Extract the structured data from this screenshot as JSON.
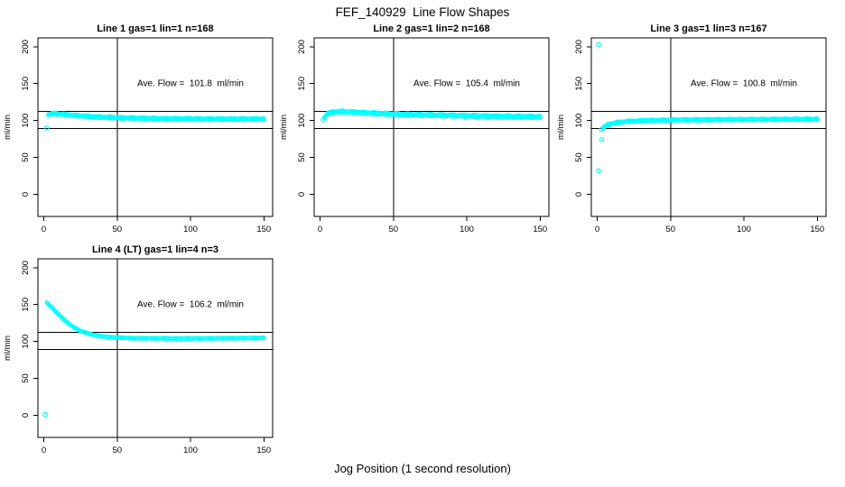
{
  "figure": {
    "title": "FEF_140929  Line Flow Shapes",
    "xlabel": "Jog Position (1 second resolution)",
    "marker_color": "#00FFFF",
    "axis_color": "#000000",
    "background": "#FFFFFF"
  },
  "chart_data": [
    {
      "type": "scatter",
      "title": "Line 1 gas=1 lin=1 n=168",
      "n": 168,
      "annotation": "Ave. Flow =  101.8  ml/min",
      "ave_flow_ml_min": 101.8,
      "ylabel": "ml/min",
      "x_ticks": [
        0,
        50,
        100,
        150
      ],
      "y_ticks": [
        0,
        50,
        100,
        150,
        200
      ],
      "xlim": [
        -4,
        156
      ],
      "ylim": [
        -30,
        212
      ],
      "ref_hlines": [
        112.5,
        89
      ],
      "ref_vline": 50,
      "annotation_pos": [
        100,
        150
      ],
      "band": {
        "x_start": 3,
        "x_end": 150,
        "x_step": 1,
        "spread": 4,
        "keypoints": [
          [
            3,
            108
          ],
          [
            6,
            109.5
          ],
          [
            10,
            109
          ],
          [
            20,
            107
          ],
          [
            35,
            105
          ],
          [
            55,
            103.5
          ],
          [
            80,
            102.5
          ],
          [
            110,
            102
          ],
          [
            150,
            102
          ]
        ]
      },
      "outliers": [
        [
          2,
          90
        ]
      ]
    },
    {
      "type": "scatter",
      "title": "Line 2 gas=1 lin=2 n=168",
      "n": 168,
      "annotation": "Ave. Flow =  105.4  ml/min",
      "ave_flow_ml_min": 105.4,
      "ylabel": "ml/min",
      "x_ticks": [
        0,
        50,
        100,
        150
      ],
      "y_ticks": [
        0,
        50,
        100,
        150,
        200
      ],
      "xlim": [
        -4,
        156
      ],
      "ylim": [
        -30,
        212
      ],
      "ref_hlines": [
        112.5,
        89
      ],
      "ref_vline": 50,
      "annotation_pos": [
        100,
        150
      ],
      "band": {
        "x_start": 3,
        "x_end": 150,
        "x_step": 1,
        "spread": 5,
        "keypoints": [
          [
            3,
            104
          ],
          [
            5,
            109
          ],
          [
            9,
            111.5
          ],
          [
            15,
            112
          ],
          [
            25,
            111
          ],
          [
            40,
            109.5
          ],
          [
            60,
            108
          ],
          [
            85,
            107
          ],
          [
            110,
            106
          ],
          [
            135,
            105.3
          ],
          [
            150,
            105
          ]
        ]
      },
      "outliers": [
        [
          2,
          101
        ]
      ]
    },
    {
      "type": "scatter",
      "title": "Line 3 gas=1 lin=3 n=167",
      "n": 167,
      "annotation": "Ave. Flow =  100.8  ml/min",
      "ave_flow_ml_min": 100.8,
      "ylabel": "ml/min",
      "x_ticks": [
        0,
        50,
        100,
        150
      ],
      "y_ticks": [
        0,
        50,
        100,
        150,
        200
      ],
      "xlim": [
        -4,
        156
      ],
      "ylim": [
        -30,
        212
      ],
      "ref_hlines": [
        112.5,
        89
      ],
      "ref_vline": 50,
      "annotation_pos": [
        100,
        150
      ],
      "band": {
        "x_start": 4,
        "x_end": 150,
        "x_step": 1,
        "spread": 3.5,
        "keypoints": [
          [
            4,
            90
          ],
          [
            6,
            93
          ],
          [
            9,
            95.5
          ],
          [
            14,
            97.5
          ],
          [
            22,
            99
          ],
          [
            35,
            100
          ],
          [
            55,
            100.8
          ],
          [
            80,
            101.2
          ],
          [
            110,
            101.5
          ],
          [
            150,
            101.8
          ]
        ]
      },
      "outliers": [
        [
          1,
          203
        ],
        [
          3,
          88
        ],
        [
          3,
          74
        ],
        [
          1,
          32
        ]
      ]
    },
    {
      "type": "scatter",
      "title": "Line 4 (LT) gas=1 lin=4 n=3",
      "n": 3,
      "annotation": "Ave. Flow =  106.2  ml/min",
      "ave_flow_ml_min": 106.2,
      "ylabel": "ml/min",
      "x_ticks": [
        0,
        50,
        100,
        150
      ],
      "y_ticks": [
        0,
        50,
        100,
        150,
        200
      ],
      "xlim": [
        -4,
        156
      ],
      "ylim": [
        -30,
        212
      ],
      "ref_hlines": [
        112.5,
        89
      ],
      "ref_vline": 50,
      "annotation_pos": [
        100,
        150
      ],
      "band": {
        "x_start": 2,
        "x_end": 150,
        "x_step": 1,
        "spread": 2,
        "keypoints": [
          [
            2,
            153
          ],
          [
            5,
            147
          ],
          [
            9,
            139
          ],
          [
            13,
            131
          ],
          [
            17,
            124
          ],
          [
            21,
            118.5
          ],
          [
            26,
            113.5
          ],
          [
            31,
            110.5
          ],
          [
            36,
            108
          ],
          [
            45,
            105.8
          ],
          [
            60,
            104.5
          ],
          [
            90,
            104
          ],
          [
            120,
            104.3
          ],
          [
            150,
            104.8
          ]
        ]
      },
      "outliers": [
        [
          1,
          1
        ]
      ]
    }
  ]
}
